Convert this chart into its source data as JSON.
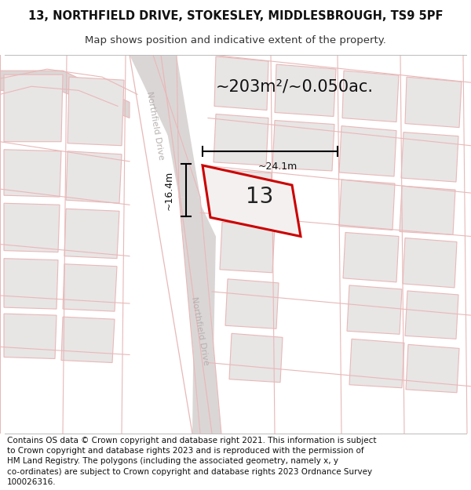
{
  "title": "13, NORTHFIELD DRIVE, STOKESLEY, MIDDLESBROUGH, TS9 5PF",
  "subtitle": "Map shows position and indicative extent of the property.",
  "area_text": "~203m²/~0.050ac.",
  "number_label": "13",
  "dim_width": "~24.1m",
  "dim_height": "~16.4m",
  "bg_color": "#ffffff",
  "building_fill": "#e8e5e5",
  "building_stroke": "#e8b8b8",
  "road_fill": "#dbd6d6",
  "road_edge_color": "#e8b8b8",
  "parcel_fill": "#eeebeb",
  "parcel_stroke": "#e8b8b8",
  "highlight_fill": "#f5f0f0",
  "highlight_stroke": "#cc0000",
  "road_label_color": "#b8b0b0",
  "footer_lines": [
    "Contains OS data © Crown copyright and database right 2021. This information is subject",
    "to Crown copyright and database rights 2023 and is reproduced with the permission of",
    "HM Land Registry. The polygons (including the associated geometry, namely x, y",
    "co-ordinates) are subject to Crown copyright and database rights 2023 Ordnance Survey",
    "100026316."
  ],
  "title_fontsize": 10.5,
  "subtitle_fontsize": 9.5,
  "footer_fontsize": 7.5
}
